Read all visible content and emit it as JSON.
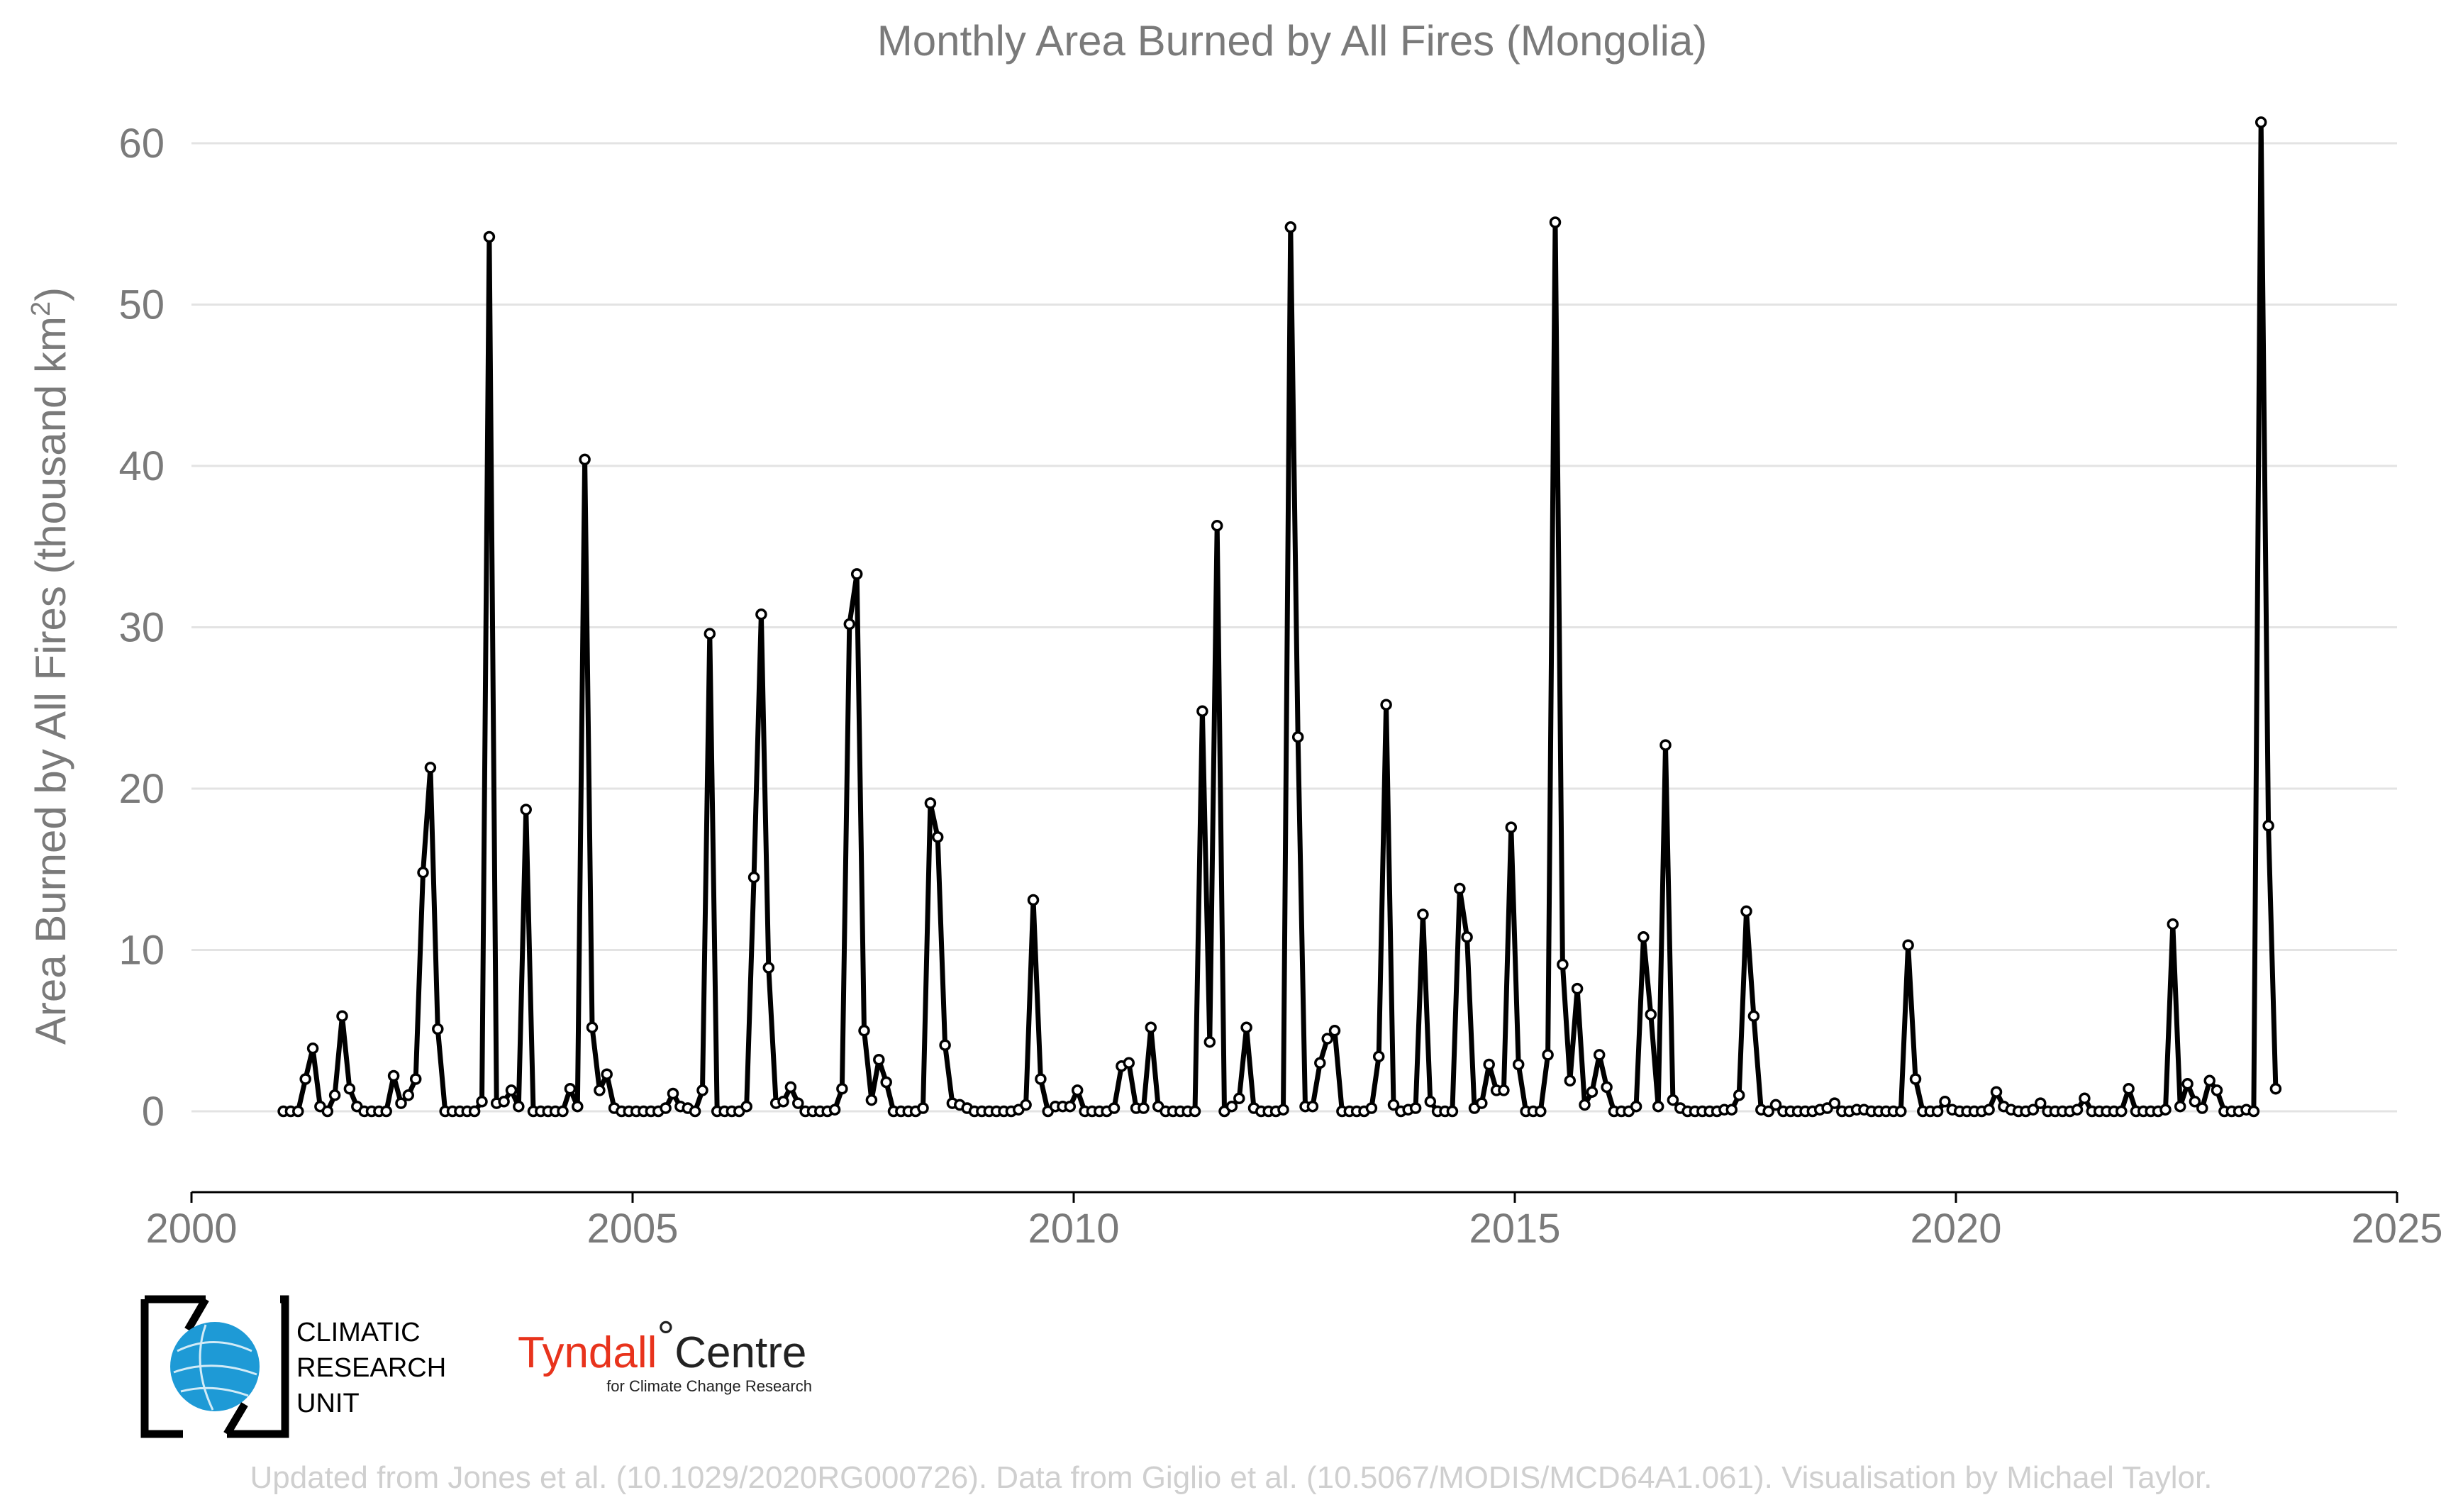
{
  "chart_data": {
    "type": "line",
    "title": "Monthly Area Burned by All Fires (Mongolia)",
    "ylabel_main": "Area Burned by All Fires (thousand km",
    "ylabel_sup": "2",
    "ylabel_close": ")",
    "xlabel": "",
    "xlim": [
      2000,
      2025
    ],
    "ylim": [
      -5,
      63
    ],
    "xticks": [
      2000,
      2005,
      2010,
      2015,
      2020,
      2025
    ],
    "yticks": [
      0,
      10,
      20,
      30,
      40,
      50,
      60
    ],
    "grid": "horizontal",
    "marker": "open-circle",
    "color": "#000000",
    "x_start": "2001-01",
    "step": "monthly",
    "series": [
      {
        "values": [
          0,
          0,
          0,
          2,
          3.9,
          0.3,
          0,
          1,
          5.9,
          1.4,
          0.3,
          0,
          0,
          0,
          0,
          2.2,
          0.5,
          1,
          2,
          14.8,
          21.3,
          5.1,
          0,
          0,
          0,
          0,
          0,
          0.6,
          54.2,
          0.5,
          0.6,
          1.3,
          0.3,
          18.7,
          0,
          0,
          0,
          0,
          0,
          1.4,
          0.3,
          40.4,
          5.2,
          1.3,
          2.3,
          0.2,
          0,
          0,
          0,
          0,
          0,
          0,
          0.2,
          1.1,
          0.3,
          0.2,
          0,
          1.3,
          29.6,
          0,
          0,
          0,
          0,
          0.3,
          14.5,
          30.8,
          8.9,
          0.5,
          0.6,
          1.5,
          0.5,
          0,
          0,
          0,
          0,
          0.1,
          1.4,
          30.2,
          33.3,
          5,
          0.7,
          3.2,
          1.8,
          0,
          0,
          0,
          0,
          0.2,
          19.1,
          17,
          4.1,
          0.5,
          0.4,
          0.2,
          0,
          0,
          0,
          0,
          0,
          0,
          0.1,
          0.4,
          13.1,
          2,
          0,
          0.3,
          0.3,
          0.3,
          1.3,
          0,
          0,
          0,
          0,
          0.2,
          2.8,
          3,
          0.2,
          0.2,
          5.2,
          0.3,
          0,
          0,
          0,
          0,
          0,
          24.8,
          4.3,
          36.3,
          0,
          0.3,
          0.8,
          5.2,
          0.2,
          0,
          0,
          0,
          0.1,
          54.8,
          23.2,
          0.3,
          0.3,
          3,
          4.5,
          5,
          0,
          0,
          0,
          0,
          0.2,
          3.4,
          25.2,
          0.4,
          0,
          0.1,
          0.2,
          12.2,
          0.6,
          0,
          0,
          0,
          13.8,
          10.8,
          0.2,
          0.5,
          2.9,
          1.3,
          1.3,
          17.6,
          2.9,
          0,
          0,
          0,
          3.5,
          55.1,
          9.1,
          1.9,
          7.6,
          0.4,
          1.2,
          3.5,
          1.5,
          0,
          0,
          0,
          0.3,
          10.8,
          6,
          0.3,
          22.7,
          0.7,
          0.2,
          0,
          0,
          0,
          0,
          0,
          0.1,
          0.1,
          1,
          12.4,
          5.9,
          0.1,
          0,
          0.4,
          0,
          0,
          0,
          0,
          0,
          0.1,
          0.2,
          0.5,
          0,
          0,
          0.1,
          0.1,
          0,
          0,
          0,
          0,
          0,
          10.3,
          2,
          0,
          0,
          0,
          0.6,
          0.1,
          0,
          0,
          0,
          0,
          0.1,
          1.2,
          0.3,
          0.1,
          0,
          0,
          0.1,
          0.5,
          0,
          0,
          0,
          0,
          0.1,
          0.8,
          0,
          0,
          0,
          0,
          0,
          1.4,
          0,
          0,
          0,
          0,
          0.1,
          11.6,
          0.3,
          1.7,
          0.6,
          0.2,
          1.9,
          1.3,
          0,
          0,
          0,
          0.1,
          0,
          61.3,
          17.7,
          1.4
        ]
      }
    ]
  },
  "logos": {
    "cru_line1": "CLIMATIC",
    "cru_line2": "RESEARCH",
    "cru_line3": "UNIT",
    "tyndall_part1": "Tyndall",
    "tyndall_degree": "°",
    "tyndall_part2": "Centre",
    "tyndall_sub": "for Climate Change Research"
  },
  "credit": "Updated from Jones et al. (10.1029/2020RG000726). Data from Giglio et al. (10.5067/MODIS/MCD64A1.061). Visualisation by Michael Taylor."
}
